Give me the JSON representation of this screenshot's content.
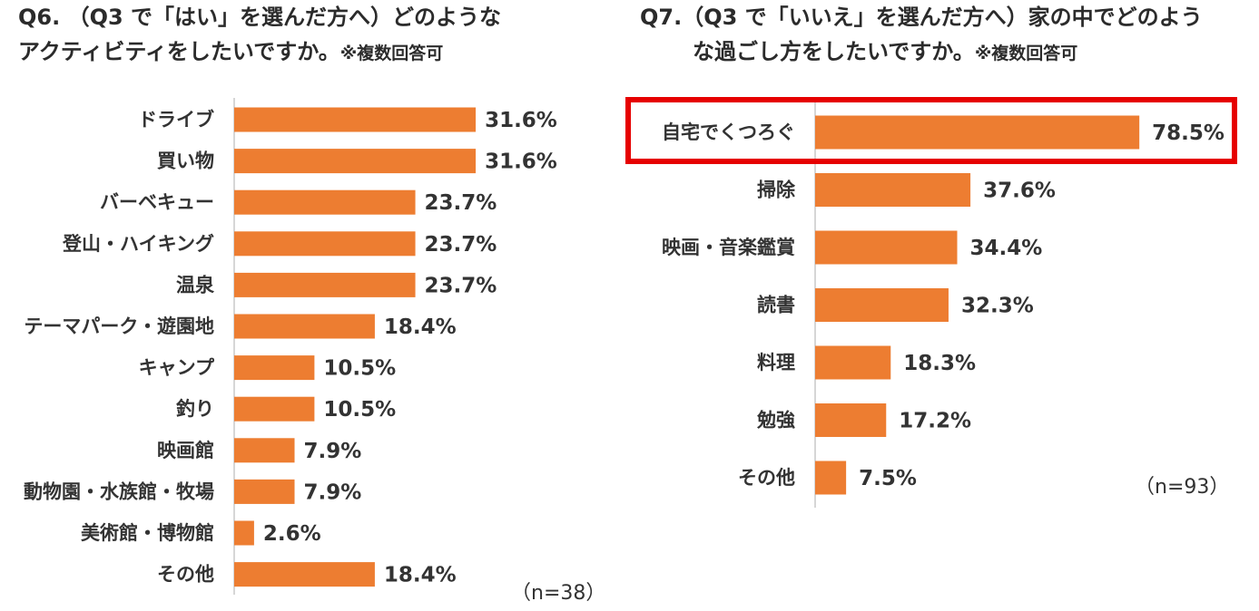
{
  "q6": {
    "title_line1": "Q6. （Q3 で「はい」を選んだ方へ）どのような",
    "title_line2": "アクティビティをしたいですか。",
    "title_note": "※複数回答可",
    "n_label": "（n=38）"
  },
  "q7": {
    "title_line1": "Q7.（Q3 で「いいえ」を選んだ方へ）家の中でどのよう",
    "title_line2": "な過ごし方をしたいですか。",
    "title_note": "※複数回答可",
    "n_label": "（n=93）"
  },
  "chart_data": [
    {
      "type": "bar",
      "orientation": "horizontal",
      "title": "Q6. （Q3 で「はい」を選んだ方へ）どのようなアクティビティをしたいですか。※複数回答可",
      "bar_color": "#ED7D31",
      "categories": [
        "ドライブ",
        "買い物",
        "バーベキュー",
        "登山・ハイキング",
        "温泉",
        "テーマパーク・遊園地",
        "キャンプ",
        "釣り",
        "映画館",
        "動物園・水族館・牧場",
        "美術館・博物館",
        "その他"
      ],
      "values": [
        31.6,
        31.6,
        23.7,
        23.7,
        23.7,
        18.4,
        10.5,
        10.5,
        7.9,
        7.9,
        2.6,
        18.4
      ],
      "value_labels": [
        "31.6%",
        "31.6%",
        "23.7%",
        "23.7%",
        "23.7%",
        "18.4%",
        "10.5%",
        "10.5%",
        "7.9%",
        "7.9%",
        "2.6%",
        "18.4%"
      ],
      "n": 38
    },
    {
      "type": "bar",
      "orientation": "horizontal",
      "title": "Q7.（Q3 で「いいえ」を選んだ方へ）家の中でどのような過ごし方をしたいですか。※複数回答可",
      "bar_color": "#ED7D31",
      "highlight_color": "#E60000",
      "highlighted_category": "自宅でくつろぐ",
      "categories": [
        "自宅でくつろぐ",
        "掃除",
        "映画・音楽鑑賞",
        "読書",
        "料理",
        "勉強",
        "その他"
      ],
      "values": [
        78.5,
        37.6,
        34.4,
        32.3,
        18.3,
        17.2,
        7.5
      ],
      "value_labels": [
        "78.5%",
        "37.6%",
        "34.4%",
        "32.3%",
        "18.3%",
        "17.2%",
        "7.5%"
      ],
      "n": 93
    }
  ]
}
